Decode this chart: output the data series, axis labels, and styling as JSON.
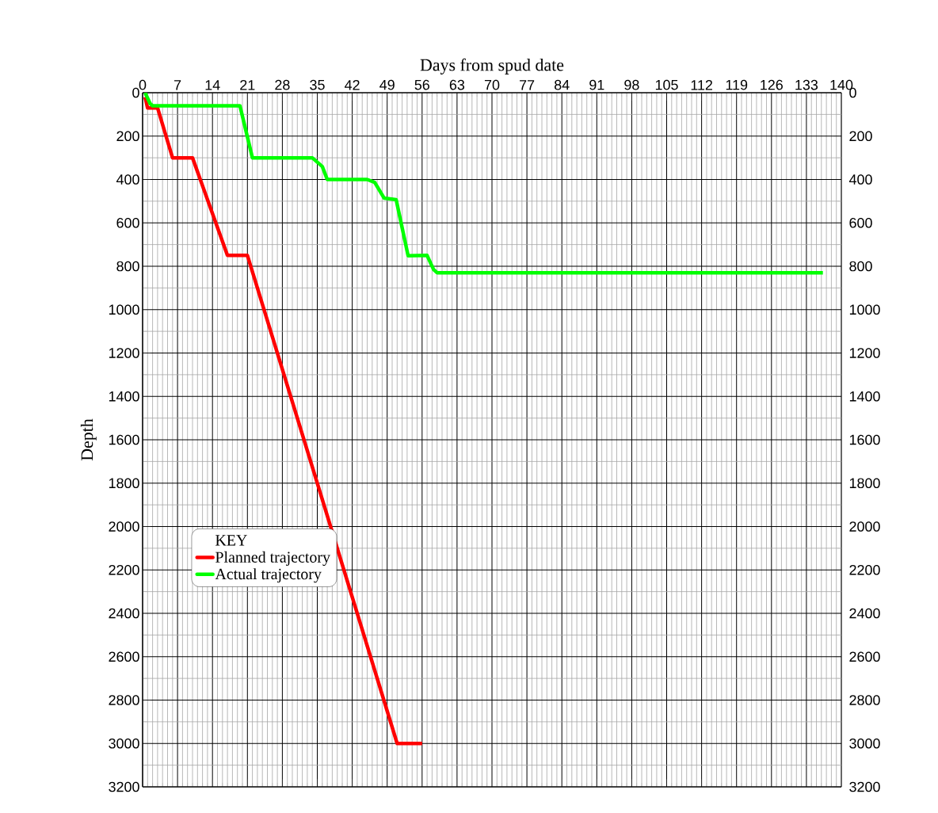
{
  "chart_data": {
    "type": "line",
    "xlabel": "Days from spud date",
    "ylabel": "Depth",
    "legend_title": "KEY",
    "xlim": [
      0,
      140
    ],
    "xticks": [
      0,
      7,
      14,
      21,
      28,
      35,
      42,
      49,
      56,
      63,
      70,
      77,
      84,
      91,
      98,
      105,
      112,
      119,
      126,
      133,
      140
    ],
    "ylim": [
      3200,
      0
    ],
    "yticks": [
      0,
      200,
      400,
      600,
      800,
      1000,
      1200,
      1400,
      1600,
      1800,
      2000,
      2200,
      2400,
      2600,
      2800,
      3000,
      3200
    ],
    "y2lim": [
      3200,
      0
    ],
    "y2ticks": [
      0,
      200,
      400,
      600,
      800,
      1000,
      1200,
      1400,
      1600,
      1800,
      2000,
      2200,
      2400,
      2600,
      2800,
      3000,
      3200
    ],
    "grid": true,
    "legend": "left",
    "series": [
      {
        "name": "Planned trajectory",
        "color": "#ff0000",
        "x": [
          0.5,
          1,
          3,
          6,
          10,
          17,
          21,
          51,
          56
        ],
        "values": [
          20,
          70,
          70,
          300,
          300,
          750,
          750,
          3000,
          3000
        ]
      },
      {
        "name": "Actual trajectory",
        "color": "#00ff00",
        "x": [
          0.5,
          1.5,
          2,
          19.5,
          22,
          34,
          36,
          37,
          45,
          46.5,
          48.4,
          50.8,
          53.2,
          57,
          58.3,
          59,
          136.3
        ],
        "values": [
          0,
          50,
          60,
          60,
          300,
          300,
          340,
          400,
          400,
          413,
          486,
          493,
          752,
          750,
          815,
          830,
          830
        ]
      }
    ]
  }
}
